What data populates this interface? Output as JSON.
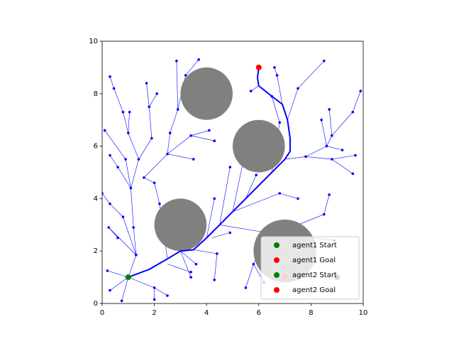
{
  "chart_data": {
    "type": "tree",
    "xlim": [
      0,
      10
    ],
    "ylim": [
      0,
      10
    ],
    "xticks": [
      0,
      2,
      4,
      6,
      8,
      10
    ],
    "yticks": [
      0,
      2,
      4,
      6,
      8,
      10
    ],
    "legend_loc": "lower right",
    "tree_color": "#0000ff",
    "obstacle_color": "#808080",
    "obstacles": [
      {
        "x": 4,
        "y": 8,
        "r": 1
      },
      {
        "x": 6,
        "y": 6,
        "r": 1
      },
      {
        "x": 3,
        "y": 3,
        "r": 1
      },
      {
        "x": 7,
        "y": 2,
        "r": 1.2
      }
    ],
    "path": {
      "x": [
        1,
        1.8,
        2.5,
        3,
        3.5,
        4,
        4.5,
        5,
        5.5,
        6,
        6.5,
        7,
        7.2,
        7.2,
        7.1,
        6.9,
        6.5,
        6,
        5.95,
        6
      ],
      "y": [
        1,
        1.3,
        1.7,
        2,
        2.05,
        2.5,
        3,
        3.5,
        4,
        4.5,
        5,
        5.5,
        5.8,
        6.3,
        7,
        7.6,
        7.9,
        8.3,
        8.6,
        9
      ]
    },
    "tree_edges": [
      {
        "x": [
          1,
          0.2
        ],
        "y": [
          1,
          1.25
        ]
      },
      {
        "x": [
          1,
          0.3
        ],
        "y": [
          1,
          0.5
        ]
      },
      {
        "x": [
          1,
          0.75
        ],
        "y": [
          1,
          0.1
        ]
      },
      {
        "x": [
          1,
          2
        ],
        "y": [
          1,
          0.6
        ]
      },
      {
        "x": [
          2,
          2.5
        ],
        "y": [
          0.6,
          0.3
        ]
      },
      {
        "x": [
          2,
          2
        ],
        "y": [
          0.6,
          0.15
        ]
      },
      {
        "x": [
          1,
          1.3
        ],
        "y": [
          1,
          1.85
        ]
      },
      {
        "x": [
          1.3,
          0.25
        ],
        "y": [
          1.85,
          2.9
        ]
      },
      {
        "x": [
          0.25,
          0.6
        ],
        "y": [
          2.9,
          2.5
        ]
      },
      {
        "x": [
          1.3,
          0.8
        ],
        "y": [
          1.85,
          3.3
        ]
      },
      {
        "x": [
          0.8,
          0.3
        ],
        "y": [
          3.3,
          3.8
        ]
      },
      {
        "x": [
          0.3,
          0
        ],
        "y": [
          3.8,
          4.2
        ]
      },
      {
        "x": [
          1.3,
          1.2
        ],
        "y": [
          1.85,
          2.9
        ]
      },
      {
        "x": [
          1.2,
          1.1
        ],
        "y": [
          2.9,
          4.4
        ]
      },
      {
        "x": [
          1.1,
          0.6
        ],
        "y": [
          4.4,
          5.2
        ]
      },
      {
        "x": [
          0.6,
          0.3
        ],
        "y": [
          5.2,
          5.65
        ]
      },
      {
        "x": [
          1.1,
          0.9
        ],
        "y": [
          4.4,
          5.5
        ]
      },
      {
        "x": [
          0.9,
          0.1
        ],
        "y": [
          5.5,
          6.6
        ]
      },
      {
        "x": [
          1.1,
          1.4
        ],
        "y": [
          4.4,
          5.5
        ]
      },
      {
        "x": [
          1.4,
          1
        ],
        "y": [
          5.5,
          6.5
        ]
      },
      {
        "x": [
          1,
          0.8
        ],
        "y": [
          6.5,
          7.3
        ]
      },
      {
        "x": [
          0.8,
          0.45
        ],
        "y": [
          7.3,
          8.2
        ]
      },
      {
        "x": [
          0.45,
          0.3
        ],
        "y": [
          8.2,
          8.65
        ]
      },
      {
        "x": [
          1,
          1.05
        ],
        "y": [
          6.5,
          7.3
        ]
      },
      {
        "x": [
          1.4,
          1.9
        ],
        "y": [
          5.5,
          6.3
        ]
      },
      {
        "x": [
          1.9,
          1.8
        ],
        "y": [
          6.3,
          7.5
        ]
      },
      {
        "x": [
          1.8,
          1.7
        ],
        "y": [
          7.5,
          8.4
        ]
      },
      {
        "x": [
          1.8,
          2.1
        ],
        "y": [
          7.5,
          8
        ]
      },
      {
        "x": [
          2.5,
          2.2
        ],
        "y": [
          1.7,
          3.8
        ]
      },
      {
        "x": [
          2.2,
          2
        ],
        "y": [
          3.8,
          4.6
        ]
      },
      {
        "x": [
          2,
          1.6
        ],
        "y": [
          4.6,
          4.8
        ]
      },
      {
        "x": [
          1.6,
          2.5
        ],
        "y": [
          4.8,
          5.7
        ]
      },
      {
        "x": [
          2.5,
          2.6
        ],
        "y": [
          5.7,
          6.5
        ]
      },
      {
        "x": [
          2.6,
          2.9
        ],
        "y": [
          6.5,
          7.4
        ]
      },
      {
        "x": [
          2.9,
          2.85
        ],
        "y": [
          7.4,
          9.25
        ]
      },
      {
        "x": [
          2.9,
          3.2
        ],
        "y": [
          7.4,
          8.7
        ]
      },
      {
        "x": [
          3.2,
          3.7
        ],
        "y": [
          8.7,
          9.3
        ]
      },
      {
        "x": [
          2.5,
          3.4
        ],
        "y": [
          5.7,
          6.4
        ]
      },
      {
        "x": [
          3.4,
          4.1
        ],
        "y": [
          6.4,
          6.6
        ]
      },
      {
        "x": [
          3.4,
          4.3
        ],
        "y": [
          6.4,
          6.2
        ]
      },
      {
        "x": [
          2.5,
          3.5
        ],
        "y": [
          5.7,
          5.5
        ]
      },
      {
        "x": [
          2.5,
          3.4
        ],
        "y": [
          1.5,
          1.2
        ]
      },
      {
        "x": [
          3,
          3.4
        ],
        "y": [
          2,
          1
        ]
      },
      {
        "x": [
          3,
          3.6
        ],
        "y": [
          2,
          1.5
        ]
      },
      {
        "x": [
          3.5,
          4.4
        ],
        "y": [
          2.05,
          1.9
        ]
      },
      {
        "x": [
          4.4,
          4.3
        ],
        "y": [
          1.9,
          0.9
        ]
      },
      {
        "x": [
          4,
          4.3
        ],
        "y": [
          2.5,
          4
        ]
      },
      {
        "x": [
          4.5,
          4.9
        ],
        "y": [
          3,
          5.2
        ]
      },
      {
        "x": [
          5,
          5.4
        ],
        "y": [
          3.5,
          5.4
        ]
      },
      {
        "x": [
          5.5,
          5.9
        ],
        "y": [
          4,
          4.9
        ]
      },
      {
        "x": [
          6.5,
          6.8
        ],
        "y": [
          5,
          6.9
        ]
      },
      {
        "x": [
          6.8,
          6.5
        ],
        "y": [
          6.9,
          7.9
        ]
      },
      {
        "x": [
          7,
          7.8
        ],
        "y": [
          5.5,
          5.6
        ]
      },
      {
        "x": [
          7.8,
          8.6
        ],
        "y": [
          5.6,
          6
        ]
      },
      {
        "x": [
          8.6,
          9.2
        ],
        "y": [
          6,
          5.85
        ]
      },
      {
        "x": [
          8.6,
          8.8
        ],
        "y": [
          6,
          6.4
        ]
      },
      {
        "x": [
          8.8,
          9.6
        ],
        "y": [
          6.4,
          7.3
        ]
      },
      {
        "x": [
          9.6,
          9.9
        ],
        "y": [
          7.3,
          8.1
        ]
      },
      {
        "x": [
          8.8,
          8.7
        ],
        "y": [
          6.4,
          7.4
        ]
      },
      {
        "x": [
          8.6,
          8.4
        ],
        "y": [
          6,
          7
        ]
      },
      {
        "x": [
          7.8,
          8.8
        ],
        "y": [
          5.6,
          5.5
        ]
      },
      {
        "x": [
          8.8,
          9.6
        ],
        "y": [
          5.5,
          4.95
        ]
      },
      {
        "x": [
          8.8,
          9.7
        ],
        "y": [
          5.5,
          5.65
        ]
      },
      {
        "x": [
          7.1,
          7.5
        ],
        "y": [
          7,
          8.2
        ]
      },
      {
        "x": [
          7.5,
          8.5
        ],
        "y": [
          8.2,
          9.25
        ]
      },
      {
        "x": [
          6.9,
          6.7
        ],
        "y": [
          7.6,
          8.7
        ]
      },
      {
        "x": [
          6.7,
          6.6
        ],
        "y": [
          8.7,
          9
        ]
      },
      {
        "x": [
          6,
          5.7
        ],
        "y": [
          8.3,
          8.1
        ]
      },
      {
        "x": [
          4.5,
          6.3
        ],
        "y": [
          3,
          2.7
        ]
      },
      {
        "x": [
          6.3,
          7.5
        ],
        "y": [
          2.7,
          3
        ]
      },
      {
        "x": [
          7.5,
          8.5
        ],
        "y": [
          3,
          3.4
        ]
      },
      {
        "x": [
          8.5,
          8.7
        ],
        "y": [
          3.4,
          4.15
        ]
      },
      {
        "x": [
          6.3,
          5.8
        ],
        "y": [
          2.7,
          1.5
        ]
      },
      {
        "x": [
          5.8,
          6.2
        ],
        "y": [
          1.5,
          0.8
        ]
      },
      {
        "x": [
          5.8,
          5.5
        ],
        "y": [
          1.5,
          0.6
        ]
      },
      {
        "x": [
          5,
          6.8
        ],
        "y": [
          3.5,
          4.2
        ]
      },
      {
        "x": [
          6.8,
          7.5
        ],
        "y": [
          4.2,
          4
        ]
      },
      {
        "x": [
          4.2,
          4.9
        ],
        "y": [
          2.5,
          2.7
        ]
      },
      {
        "x": [
          6.3,
          8.9
        ],
        "y": [
          2.7,
          2.4
        ]
      }
    ],
    "series": [
      {
        "name": "agent1 Start",
        "color": "#008000",
        "x": [
          1
        ],
        "y": [
          1
        ]
      },
      {
        "name": "agent1 Goal",
        "color": "#ff0000",
        "x": [
          6
        ],
        "y": [
          9
        ]
      },
      {
        "name": "agent2 Start",
        "color": "#008000",
        "x": [
          9
        ],
        "y": [
          1
        ]
      },
      {
        "name": "agent2 Goal",
        "color": "#ff0000",
        "x": [
          7
        ],
        "y": [
          1
        ]
      }
    ]
  }
}
